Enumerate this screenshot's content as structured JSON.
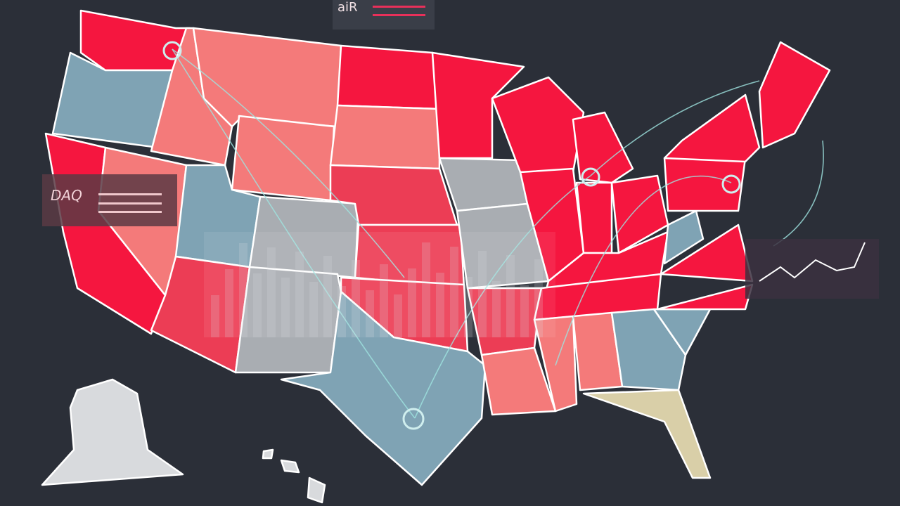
{
  "header": {
    "title": "aiR"
  },
  "panel": {
    "label": "DAQ"
  }
}
